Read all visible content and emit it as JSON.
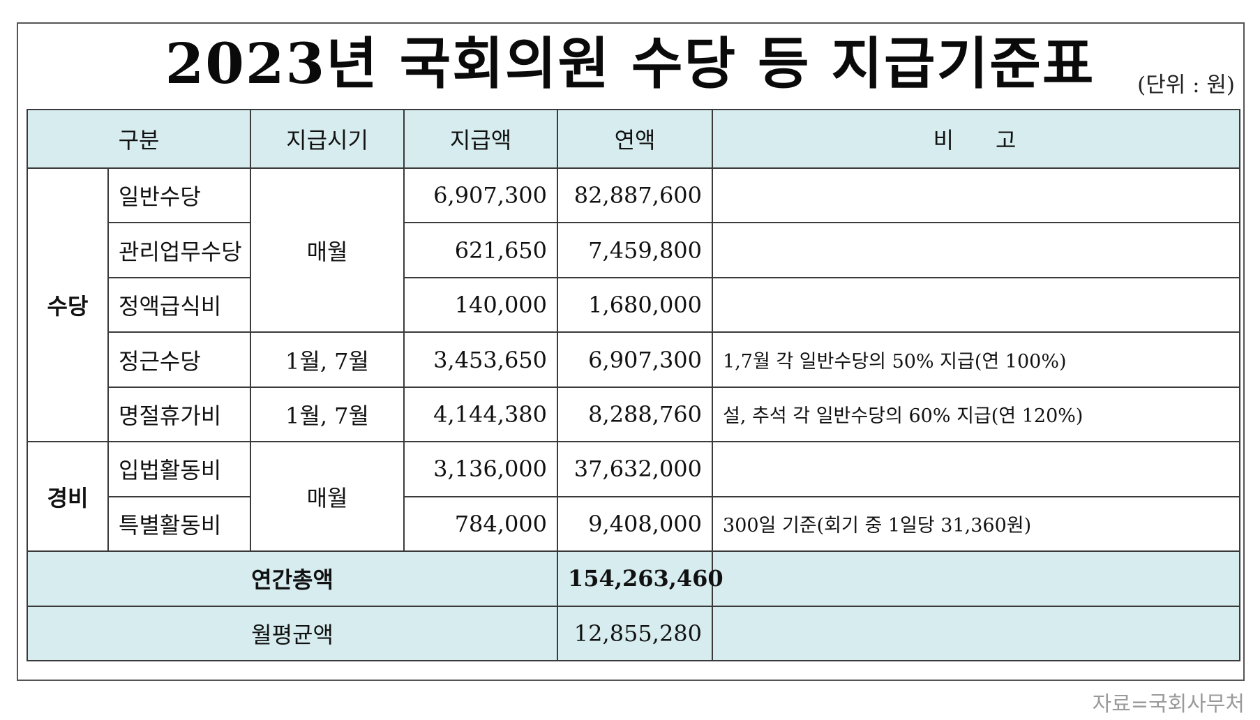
{
  "title": "2023년 국회의원 수당 등 지급기준표",
  "unit": "(단위 : 원)",
  "headers": {
    "category": "구분",
    "timing": "지급시기",
    "amount": "지급액",
    "annual": "연액",
    "note": "비고"
  },
  "groups": {
    "allowance": "수당",
    "expense": "경비"
  },
  "timing_values": {
    "monthly_a": "매월",
    "jan_jul_a": "1월, 7월",
    "jan_jul_b": "1월, 7월",
    "monthly_b": "매월"
  },
  "rows": [
    {
      "name": "일반수당",
      "amount": "6,907,300",
      "annual": "82,887,600",
      "note": ""
    },
    {
      "name": "관리업무수당",
      "amount": "621,650",
      "annual": "7,459,800",
      "note": ""
    },
    {
      "name": "정액급식비",
      "amount": "140,000",
      "annual": "1,680,000",
      "note": ""
    },
    {
      "name": "정근수당",
      "amount": "3,453,650",
      "annual": "6,907,300",
      "note": "1,7월 각 일반수당의 50% 지급(연 100%)"
    },
    {
      "name": "명절휴가비",
      "amount": "4,144,380",
      "annual": "8,288,760",
      "note": "설, 추석 각 일반수당의 60% 지급(연 120%)"
    },
    {
      "name": "입법활동비",
      "amount": "3,136,000",
      "annual": "37,632,000",
      "note": ""
    },
    {
      "name": "특별활동비",
      "amount": "784,000",
      "annual": "9,408,000",
      "note": "300일 기준(회기 중 1일당 31,360원)"
    }
  ],
  "totals": {
    "annual_label": "연간총액",
    "annual_value": "154,263,460",
    "monthly_label": "월평균액",
    "monthly_value": "12,855,280"
  },
  "source": "자료=국회사무처",
  "colors": {
    "header_bg": "#d6ecef",
    "border": "#3a3a3a",
    "source_text": "#9a9a9a"
  }
}
